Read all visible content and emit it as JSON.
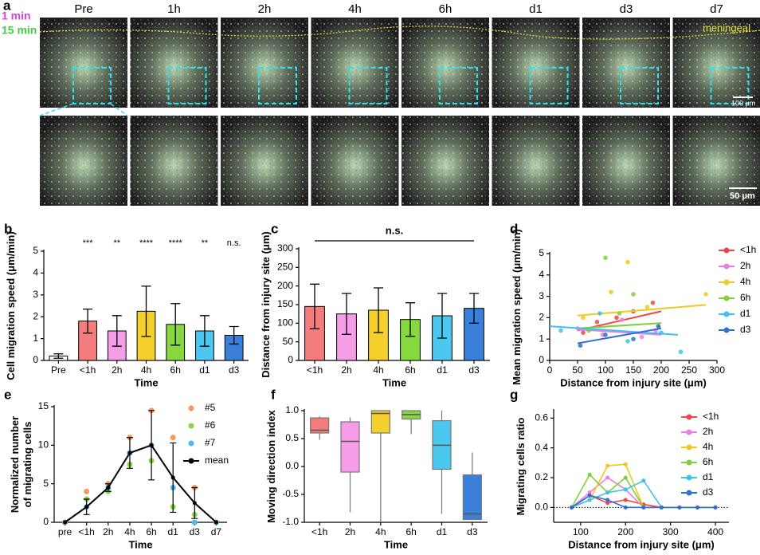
{
  "panel_a": {
    "label": "a",
    "columns": [
      "Pre",
      "1h",
      "2h",
      "4h",
      "6h",
      "d1",
      "d3",
      "d7"
    ],
    "channels": [
      "1 min",
      "15 min"
    ],
    "annotation": "meningeal",
    "scale_bars": [
      "100 μm",
      "50 μm"
    ]
  },
  "chart_data": [
    {
      "type": "bar",
      "label": "b",
      "ylabel": "Cell migration speed (μm/min)",
      "xlabel": "Time",
      "categories": [
        "Pre",
        "<1h",
        "2h",
        "4h",
        "6h",
        "d1",
        "d3"
      ],
      "values": [
        0.2,
        1.8,
        1.35,
        2.25,
        1.65,
        1.35,
        1.15
      ],
      "errors": [
        0.1,
        0.55,
        0.7,
        1.15,
        0.95,
        0.7,
        0.4
      ],
      "colors": [
        "#ffffff",
        "#f47c7c",
        "#f59de6",
        "#f5cf2b",
        "#86d83e",
        "#4cc8f0",
        "#3a7fd9"
      ],
      "significance": [
        null,
        "***",
        "**",
        "****",
        "****",
        "**",
        "n.s."
      ],
      "ylim": [
        0,
        5
      ],
      "yticks": [
        0,
        1,
        2,
        3,
        4,
        5
      ]
    },
    {
      "type": "bar",
      "label": "c",
      "ylabel": "Distance from injury site (μm)",
      "xlabel": "Time",
      "annotation": "n.s.",
      "categories": [
        "<1h",
        "2h",
        "4h",
        "6h",
        "d1",
        "d3"
      ],
      "values": [
        145,
        125,
        135,
        110,
        120,
        140
      ],
      "errors": [
        60,
        55,
        60,
        45,
        60,
        40
      ],
      "colors": [
        "#f47c7c",
        "#f59de6",
        "#f5cf2b",
        "#86d83e",
        "#4cc8f0",
        "#3a7fd9"
      ],
      "ylim": [
        0,
        300
      ],
      "yticks": [
        0,
        50,
        100,
        150,
        200,
        250,
        300
      ]
    },
    {
      "type": "scatter",
      "label": "d",
      "ylabel": "Mean migration speed (μm/min)",
      "xlabel": "Distance from injury site (μm)",
      "legend": "right",
      "xlim": [
        0,
        300
      ],
      "xticks": [
        0,
        50,
        100,
        150,
        200,
        250,
        300
      ],
      "ylim": [
        0,
        5
      ],
      "yticks": [
        0,
        1,
        2,
        3,
        4,
        5
      ],
      "series": [
        {
          "name": "<1h",
          "color": "#f04545",
          "x": [
            60,
            85,
            120,
            150,
            185
          ],
          "y": [
            1.3,
            1.8,
            2.0,
            2.3,
            2.7
          ],
          "trend": {
            "x": [
              50,
              200
            ],
            "y": [
              1.4,
              2.3
            ]
          }
        },
        {
          "name": "2h",
          "color": "#f07ce0",
          "x": [
            50,
            95,
            130,
            165,
            190
          ],
          "y": [
            1.5,
            1.2,
            1.9,
            1.1,
            1.4
          ],
          "trend": {
            "x": [
              50,
              200
            ],
            "y": [
              1.45,
              1.2
            ]
          }
        },
        {
          "name": "4h",
          "color": "#f0c820",
          "x": [
            60,
            110,
            140,
            175,
            280
          ],
          "y": [
            2.0,
            3.2,
            4.6,
            2.5,
            3.1
          ],
          "trend": {
            "x": [
              50,
              280
            ],
            "y": [
              2.1,
              2.6
            ]
          }
        },
        {
          "name": "6h",
          "color": "#7ed13a",
          "x": [
            70,
            100,
            125,
            150,
            195
          ],
          "y": [
            1.4,
            4.8,
            2.2,
            3.1,
            1.6
          ],
          "trend": {
            "x": [
              50,
              200
            ],
            "y": [
              1.5,
              1.75
            ]
          }
        },
        {
          "name": "d1",
          "color": "#40c0ee",
          "x": [
            20,
            90,
            140,
            200,
            235
          ],
          "y": [
            1.4,
            2.2,
            0.9,
            1.3,
            0.4
          ],
          "trend": {
            "x": [
              0,
              230
            ],
            "y": [
              1.6,
              1.2
            ]
          }
        },
        {
          "name": "d3",
          "color": "#2f6fd0",
          "x": [
            55,
            100,
            150,
            195
          ],
          "y": [
            0.7,
            1.2,
            1.0,
            1.6
          ],
          "trend": {
            "x": [
              50,
              200
            ],
            "y": [
              0.8,
              1.5
            ]
          }
        }
      ]
    },
    {
      "type": "line",
      "label": "e",
      "ylabel": "Normalized number\nof migrating cells",
      "xlabel": "Time",
      "legend": "upper right",
      "categories": [
        "pre",
        "<1h",
        "2h",
        "4h",
        "6h",
        "d1",
        "d3",
        "d7"
      ],
      "ylim": [
        0,
        15
      ],
      "yticks": [
        0,
        5,
        10,
        15
      ],
      "series": [
        {
          "name": "#5",
          "color": "#f59a5a",
          "marker_only": true,
          "values": [
            0,
            4,
            5,
            11,
            14.5,
            11,
            4.5,
            0
          ]
        },
        {
          "name": "#6",
          "color": "#86d83e",
          "marker_only": true,
          "values": [
            0,
            3,
            4,
            7.5,
            8,
            2,
            1,
            0
          ]
        },
        {
          "name": "#7",
          "color": "#4cb8f0",
          "marker_only": true,
          "values": [
            0,
            2,
            4.5,
            9,
            10,
            4.5,
            0,
            0
          ]
        },
        {
          "name": "mean",
          "color": "#000000",
          "values": [
            0,
            2,
            4.5,
            9,
            10,
            5.8,
            2.5,
            0
          ],
          "errors": [
            0,
            1,
            0.5,
            2,
            4.5,
            4.5,
            2,
            0
          ]
        }
      ]
    },
    {
      "type": "box",
      "label": "f",
      "ylabel": "Moving direction index",
      "xlabel": "Time",
      "categories": [
        "<1h",
        "2h",
        "4h",
        "6h",
        "d1",
        "d3"
      ],
      "colors": [
        "#f47c7c",
        "#f59de6",
        "#f5cf2b",
        "#86d83e",
        "#4cc8f0",
        "#3a7fd9"
      ],
      "min": [
        0.48,
        -0.82,
        -1,
        0.58,
        -0.85,
        -0.95
      ],
      "q1": [
        0.6,
        -0.1,
        0.6,
        0.85,
        -0.05,
        -0.95
      ],
      "median": [
        0.65,
        0.45,
        0.95,
        0.93,
        0.38,
        -0.85
      ],
      "q3": [
        0.87,
        0.8,
        1,
        1,
        0.82,
        -0.15
      ],
      "max": [
        0.9,
        0.88,
        1,
        1,
        1,
        0.25
      ],
      "ylim": [
        -1,
        1
      ],
      "yticks": [
        {
          "value": -1,
          "label": "-1.0"
        },
        -0.5,
        {
          "value": 0,
          "label": "0.0"
        },
        0.5,
        {
          "value": 1,
          "label": "1.0"
        }
      ]
    },
    {
      "type": "line",
      "label": "g",
      "ylabel": "Migrating cells ratio",
      "xlabel": "Distance from injury site (μm)",
      "legend": "upper right",
      "reference_line": 0,
      "x": [
        80,
        120,
        160,
        200,
        240,
        280,
        320,
        360,
        400
      ],
      "xlim": [
        40,
        430
      ],
      "xticks": [
        100,
        200,
        300,
        400
      ],
      "ylim": [
        -0.1,
        0.65
      ],
      "yticks": [
        {
          "value": 0,
          "label": "0.0"
        },
        0.2,
        0.4,
        0.6
      ],
      "series": [
        {
          "name": "<1h",
          "color": "#f04545",
          "values": [
            0,
            0.08,
            0.03,
            0.05,
            0.02,
            0,
            0,
            0,
            0
          ]
        },
        {
          "name": "2h",
          "color": "#f07ce0",
          "values": [
            0,
            0.1,
            0.2,
            0.12,
            0,
            0,
            0,
            0,
            0
          ]
        },
        {
          "name": "4h",
          "color": "#f0c820",
          "values": [
            0,
            0.05,
            0.28,
            0.29,
            0,
            0,
            0,
            0,
            0
          ]
        },
        {
          "name": "6h",
          "color": "#7ed13a",
          "values": [
            0,
            0.22,
            0.1,
            0.2,
            0,
            0,
            0,
            0,
            0
          ]
        },
        {
          "name": "d1",
          "color": "#40c0ee",
          "values": [
            0,
            0.05,
            0.1,
            0.12,
            0.18,
            0,
            0,
            0,
            0
          ]
        },
        {
          "name": "d3",
          "color": "#2f6fd0",
          "values": [
            0,
            0.08,
            0.05,
            0,
            0,
            0,
            0,
            0,
            0
          ]
        }
      ]
    }
  ]
}
